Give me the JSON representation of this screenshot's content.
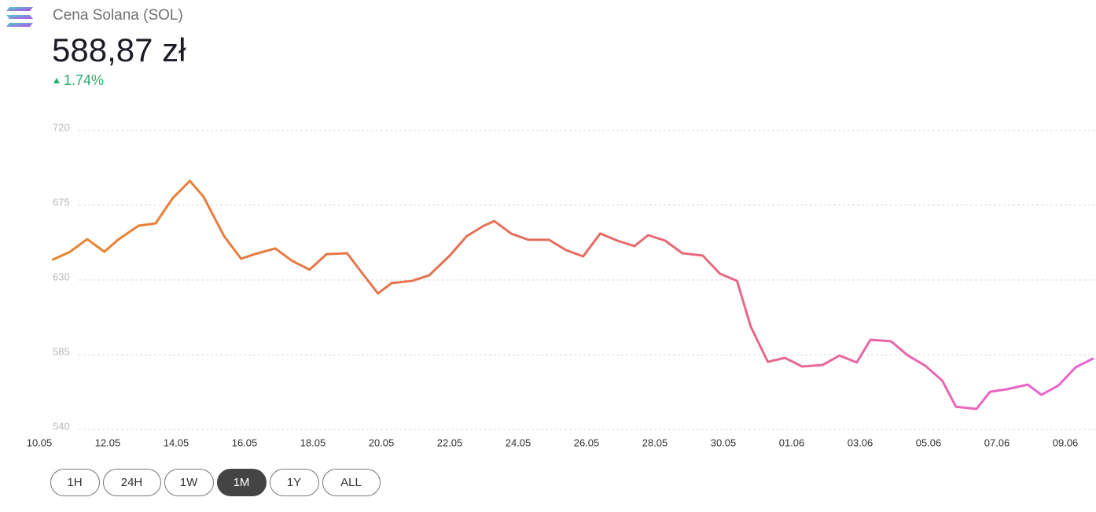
{
  "header": {
    "title": "Cena Solana (SOL)",
    "price": "588,87 zł",
    "change": "1.74%"
  },
  "chart_data": {
    "type": "line",
    "x": [
      0.4,
      0.9,
      1.4,
      1.9,
      2.3,
      2.9,
      3.4,
      3.9,
      4.4,
      4.8,
      5.4,
      5.9,
      6.3,
      6.9,
      7.4,
      7.9,
      8.4,
      9.0,
      9.4,
      9.9,
      10.3,
      10.9,
      11.4,
      12.0,
      12.5,
      13.0,
      13.3,
      13.8,
      14.3,
      14.9,
      15.4,
      15.9,
      16.4,
      16.9,
      17.4,
      17.8,
      18.3,
      18.8,
      19.4,
      19.9,
      20.4,
      20.8,
      21.3,
      21.8,
      22.3,
      22.9,
      23.4,
      23.9,
      24.3,
      24.9,
      25.4,
      25.9,
      26.4,
      26.8,
      27.4,
      27.8,
      28.3,
      28.9,
      29.3,
      29.8,
      30.3,
      30.8
    ],
    "series": [
      {
        "name": "SOL",
        "color": "#e8862a",
        "gradient": [
          "#e8862a",
          "#e66a5e",
          "#ea64d8"
        ],
        "values": [
          642.3,
          647,
          654.6,
          647,
          654.2,
          662.7,
          664.1,
          679.3,
          689.7,
          680.2,
          656.5,
          642.8,
          645.6,
          649,
          641.4,
          636.2,
          645.6,
          646.1,
          635.2,
          621.9,
          628.1,
          629.5,
          632.8,
          644.7,
          656.5,
          662.7,
          665.5,
          657.9,
          654.2,
          654.2,
          648,
          644.2,
          658,
          653.7,
          650.4,
          657,
          653.7,
          646.1,
          644.7,
          633.8,
          629.5,
          602,
          580.7,
          583.1,
          577.9,
          578.8,
          584.5,
          580.3,
          594,
          593.1,
          584.5,
          578.4,
          569.4,
          553.7,
          552.3,
          562.7,
          564.2,
          567,
          560.8,
          566.5,
          577.4,
          582.6
        ]
      }
    ],
    "xlim": [
      0,
      30.85
    ],
    "ylim": [
      540,
      720
    ],
    "yticks": [
      540,
      585,
      630,
      675,
      720
    ],
    "xticks": [
      {
        "value": 0,
        "label": "10.05"
      },
      {
        "value": 2,
        "label": "12.05"
      },
      {
        "value": 4,
        "label": "14.05"
      },
      {
        "value": 6,
        "label": "16.05"
      },
      {
        "value": 8,
        "label": "18.05"
      },
      {
        "value": 10,
        "label": "20.05"
      },
      {
        "value": 12,
        "label": "22.05"
      },
      {
        "value": 14,
        "label": "24.05"
      },
      {
        "value": 16,
        "label": "26.05"
      },
      {
        "value": 18,
        "label": "28.05"
      },
      {
        "value": 20,
        "label": "30.05"
      },
      {
        "value": 22,
        "label": "01.06"
      },
      {
        "value": 24,
        "label": "03.06"
      },
      {
        "value": 26,
        "label": "05.06"
      },
      {
        "value": 28,
        "label": "07.06"
      },
      {
        "value": 30,
        "label": "09.06"
      }
    ],
    "grid": true
  },
  "range_buttons": [
    "1H",
    "24H",
    "1W",
    "1M",
    "1Y",
    "ALL"
  ],
  "active_range": "1M"
}
